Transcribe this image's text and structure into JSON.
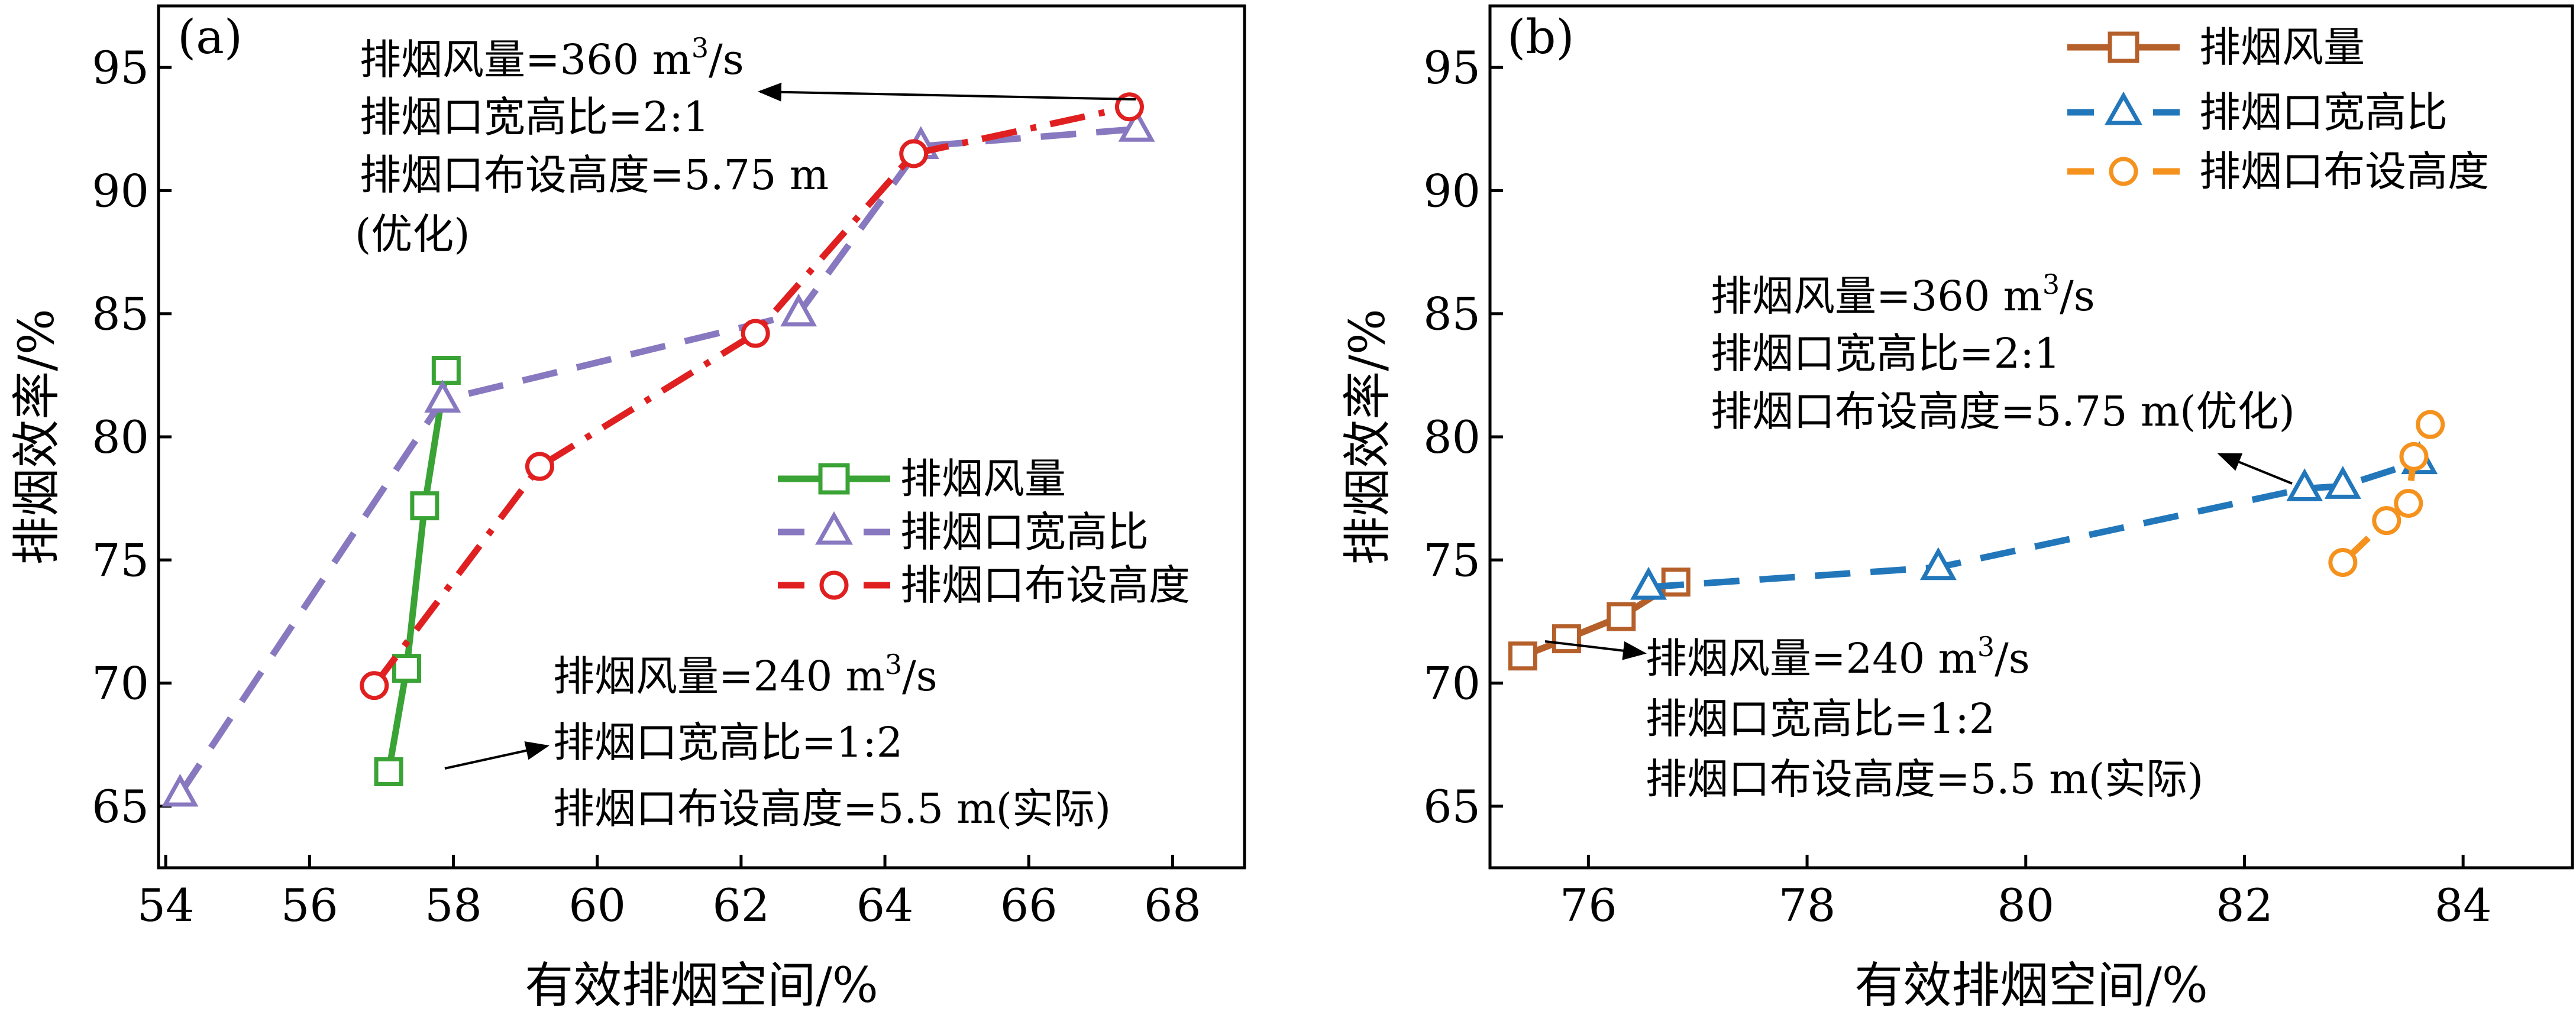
{
  "chart_data": [
    {
      "panel": "(a)",
      "type": "line",
      "xlabel": "有效排烟空间/%",
      "ylabel": "排烟效率/%",
      "xlim": [
        53.9,
        69.0
      ],
      "ylim": [
        62.5,
        97.5
      ],
      "xticks": [
        54,
        56,
        58,
        60,
        62,
        64,
        66,
        68
      ],
      "yticks": [
        65,
        70,
        75,
        80,
        85,
        90,
        95
      ],
      "legend_position": "center-right",
      "series": [
        {
          "name": "排烟风量",
          "color": "#3aa335",
          "marker": "square",
          "dash": "solid",
          "x": [
            57.1,
            57.35,
            57.6,
            57.9
          ],
          "y": [
            66.4,
            70.6,
            77.2,
            82.7
          ]
        },
        {
          "name": "排烟口宽高比",
          "color": "#8878c0",
          "marker": "triangle",
          "dash": "dash",
          "x": [
            54.2,
            57.85,
            62.8,
            64.5,
            67.5
          ],
          "y": [
            65.5,
            81.5,
            85.0,
            91.8,
            92.5
          ]
        },
        {
          "name": "排烟口布设高度",
          "color": "#e02020",
          "marker": "circle",
          "dash": "dashdot",
          "x": [
            56.9,
            59.2,
            62.2,
            64.4,
            67.4
          ],
          "y": [
            69.9,
            78.8,
            84.2,
            91.5,
            93.4
          ]
        }
      ],
      "annotations": [
        {
          "lines": [
            "排烟风量=360 m",
            "排烟口宽高比=2:1",
            "排烟口布设高度=5.75 m",
            "(优化)"
          ],
          "sup": "3",
          "sup_after": "/s"
        },
        {
          "lines": [
            "排烟风量=240 m",
            "排烟口宽高比=1:2",
            "排烟口布设高度=5.5 m(实际)"
          ],
          "sup": "3",
          "sup_after": "/s"
        }
      ]
    },
    {
      "panel": "(b)",
      "type": "line",
      "xlabel": "有效排烟空间/%",
      "ylabel": "排烟效率/%",
      "xlim": [
        75.1,
        85.0
      ],
      "ylim": [
        62.5,
        97.5
      ],
      "xticks": [
        76,
        78,
        80,
        82,
        84
      ],
      "yticks": [
        65,
        70,
        75,
        80,
        85,
        90,
        95
      ],
      "legend_position": "top-right",
      "series": [
        {
          "name": "排烟风量",
          "color": "#b5602b",
          "marker": "square",
          "dash": "solid",
          "x": [
            75.4,
            75.8,
            76.3,
            76.8
          ],
          "y": [
            71.1,
            71.8,
            72.7,
            74.1
          ]
        },
        {
          "name": "排烟口宽高比",
          "color": "#2277bb",
          "marker": "triangle",
          "dash": "dash",
          "x": [
            76.55,
            79.2,
            82.55,
            82.9,
            83.6
          ],
          "y": [
            73.9,
            74.7,
            77.9,
            78.0,
            79.0
          ]
        },
        {
          "name": "排烟口布设高度",
          "color": "#f5921e",
          "marker": "circle",
          "dash": "dash",
          "x": [
            82.9,
            83.3,
            83.5,
            83.55,
            83.7
          ],
          "y": [
            74.9,
            76.6,
            77.3,
            79.2,
            80.5
          ]
        }
      ],
      "annotations": [
        {
          "lines": [
            "排烟风量=360 m",
            "排烟口宽高比=2:1",
            "排烟口布设高度=5.75 m(优化)"
          ],
          "sup": "3",
          "sup_after": "/s"
        },
        {
          "lines": [
            "排烟风量=240 m",
            "排烟口宽高比=1:2",
            "排烟口布设高度=5.5 m(实际)"
          ],
          "sup": "3",
          "sup_after": "/s"
        }
      ]
    }
  ]
}
